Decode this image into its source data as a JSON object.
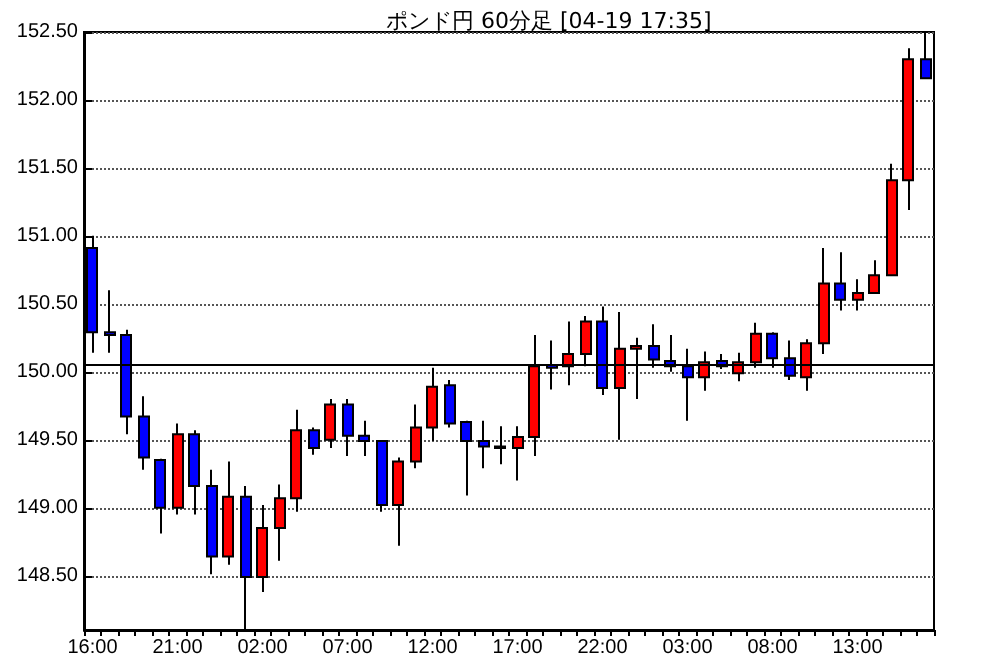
{
  "chart_data": {
    "type": "candlestick",
    "title": "ポンド円 60分足 [04-19 17:35]",
    "categories": [
      "16:00",
      null,
      null,
      null,
      null,
      "21:00",
      null,
      null,
      null,
      null,
      "02:00",
      null,
      null,
      null,
      null,
      "07:00",
      null,
      null,
      null,
      null,
      "12:00",
      null,
      null,
      null,
      null,
      "17:00",
      null,
      null,
      null,
      null,
      "22:00",
      null,
      null,
      null,
      null,
      "03:00",
      null,
      null,
      null,
      null,
      "08:00",
      null,
      null,
      null,
      null,
      "13:00",
      null,
      null,
      null,
      null
    ],
    "ohlc": [
      [
        150.91,
        151.0,
        150.14,
        150.29
      ],
      [
        150.29,
        150.6,
        150.14,
        150.27
      ],
      [
        150.27,
        150.31,
        149.54,
        149.67
      ],
      [
        149.67,
        149.82,
        149.28,
        149.37
      ],
      [
        149.35,
        149.36,
        148.81,
        149.0
      ],
      [
        149.0,
        149.62,
        148.95,
        149.54
      ],
      [
        149.54,
        149.57,
        148.95,
        149.16
      ],
      [
        149.16,
        149.28,
        148.51,
        148.64
      ],
      [
        148.64,
        149.34,
        148.58,
        149.08
      ],
      [
        149.08,
        149.16,
        148.1,
        148.49
      ],
      [
        148.49,
        149.02,
        148.38,
        148.85
      ],
      [
        148.85,
        149.17,
        148.61,
        149.07
      ],
      [
        149.07,
        149.72,
        148.97,
        149.57
      ],
      [
        149.57,
        149.59,
        149.39,
        149.44
      ],
      [
        149.5,
        149.8,
        149.44,
        149.76
      ],
      [
        149.76,
        149.8,
        149.38,
        149.53
      ],
      [
        149.53,
        149.64,
        149.38,
        149.49
      ],
      [
        149.49,
        149.49,
        148.97,
        149.02
      ],
      [
        149.02,
        149.37,
        148.72,
        149.34
      ],
      [
        149.34,
        149.76,
        149.29,
        149.59
      ],
      [
        149.59,
        150.03,
        149.49,
        149.89
      ],
      [
        149.9,
        149.94,
        149.59,
        149.62
      ],
      [
        149.63,
        149.64,
        149.09,
        149.49
      ],
      [
        149.49,
        149.64,
        149.29,
        149.45
      ],
      [
        149.45,
        149.6,
        149.32,
        149.44
      ],
      [
        149.44,
        149.6,
        149.2,
        149.52
      ],
      [
        149.52,
        150.27,
        149.38,
        150.04
      ],
      [
        150.05,
        150.23,
        149.87,
        150.03
      ],
      [
        150.04,
        150.37,
        149.9,
        150.13
      ],
      [
        150.13,
        150.41,
        150.04,
        150.37
      ],
      [
        150.37,
        150.48,
        149.83,
        149.88
      ],
      [
        149.88,
        150.44,
        149.5,
        150.17
      ],
      [
        150.17,
        150.25,
        149.8,
        150.19
      ],
      [
        150.19,
        150.35,
        150.03,
        150.09
      ],
      [
        150.08,
        150.27,
        150.0,
        150.04
      ],
      [
        150.04,
        150.17,
        149.64,
        149.96
      ],
      [
        149.96,
        150.15,
        149.86,
        150.07
      ],
      [
        150.08,
        150.13,
        150.02,
        150.04
      ],
      [
        149.99,
        150.14,
        149.93,
        150.07
      ],
      [
        150.07,
        150.36,
        150.03,
        150.28
      ],
      [
        150.28,
        150.29,
        150.03,
        150.1
      ],
      [
        150.1,
        150.23,
        149.94,
        149.97
      ],
      [
        149.96,
        150.24,
        149.86,
        150.21
      ],
      [
        150.21,
        150.91,
        150.13,
        150.65
      ],
      [
        150.65,
        150.88,
        150.45,
        150.53
      ],
      [
        150.53,
        150.68,
        150.45,
        150.58
      ],
      [
        150.58,
        150.82,
        150.58,
        150.71
      ],
      [
        150.71,
        151.53,
        150.71,
        151.41
      ],
      [
        151.41,
        152.38,
        151.19,
        152.3
      ],
      [
        152.3,
        152.5,
        152.16,
        152.16
      ]
    ],
    "colors": [
      "#0000ff",
      "#0000ff",
      "#0000ff",
      "#0000ff",
      "#0000ff",
      "#ff0000",
      "#0000ff",
      "#0000ff",
      "#ff0000",
      "#0000ff",
      "#ff0000",
      "#ff0000",
      "#ff0000",
      "#0000ff",
      "#ff0000",
      "#0000ff",
      "#0000ff",
      "#0000ff",
      "#ff0000",
      "#ff0000",
      "#ff0000",
      "#0000ff",
      "#0000ff",
      "#0000ff",
      "#0000ff",
      "#ff0000",
      "#ff0000",
      "#0000ff",
      "#ff0000",
      "#ff0000",
      "#0000ff",
      "#ff0000",
      "#ff0000",
      "#0000ff",
      "#0000ff",
      "#0000ff",
      "#ff0000",
      "#0000ff",
      "#ff0000",
      "#ff0000",
      "#0000ff",
      "#0000ff",
      "#ff0000",
      "#ff0000",
      "#0000ff",
      "#ff0000",
      "#ff0000",
      "#ff0000",
      "#ff0000",
      "#0000ff"
    ],
    "ylim": [
      148.1,
      152.5
    ],
    "yticks": [
      {
        "value": 148.5,
        "label": "148.50"
      },
      {
        "value": 149,
        "label": "149.00"
      },
      {
        "value": 149.5,
        "label": "149.50"
      },
      {
        "value": 150,
        "label": "150.00"
      },
      {
        "value": 150.5,
        "label": "150.50"
      },
      {
        "value": 151,
        "label": "151.00"
      },
      {
        "value": 151.5,
        "label": "151.50"
      },
      {
        "value": 152,
        "label": "152.00"
      },
      {
        "value": 152.5,
        "label": "152.50"
      }
    ],
    "grid": "y",
    "ref_lines": [
      {
        "axis": "y",
        "value": 150.05,
        "color": "#000000",
        "line_style": "solid"
      }
    ]
  }
}
